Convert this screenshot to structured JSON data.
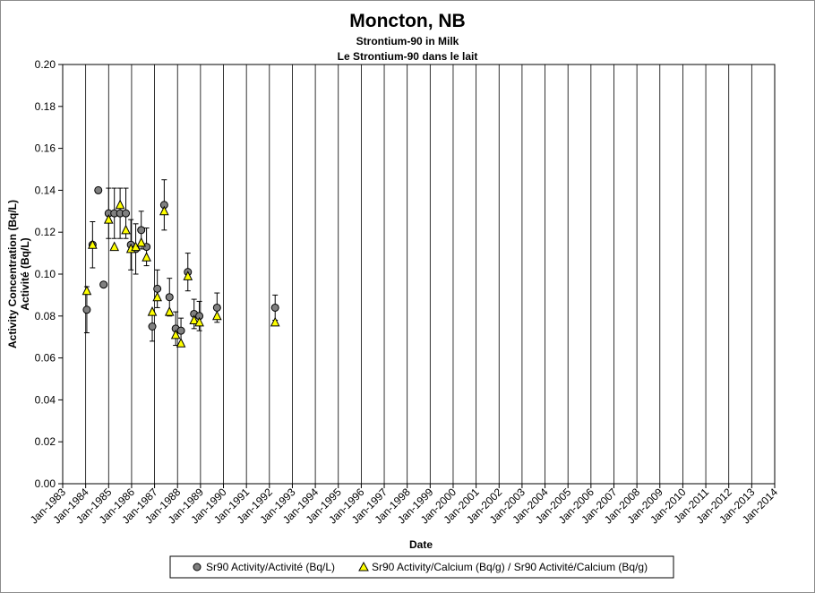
{
  "chart_data": {
    "type": "scatter",
    "title": "Moncton, NB",
    "subtitle_en": "Strontium-90 in Milk",
    "subtitle_fr": "Le Strontium-90 dans le lait",
    "xlabel": "Date",
    "ylabel_line1": "Activity Concentration (Bq/L)",
    "ylabel_line2": "Activité (Bq/L)",
    "xlim": [
      1983.0,
      2014.0
    ],
    "ylim": [
      0,
      0.2
    ],
    "x_tick_labels": [
      "Jan-1983",
      "Jan-1984",
      "Jan-1985",
      "Jan-1986",
      "Jan-1987",
      "Jan-1988",
      "Jan-1989",
      "Jan-1990",
      "Jan-1991",
      "Jan-1992",
      "Jan-1993",
      "Jan-1994",
      "Jan-1995",
      "Jan-1996",
      "Jan-1997",
      "Jan-1998",
      "Jan-1999",
      "Jan-2000",
      "Jan-2001",
      "Jan-2002",
      "Jan-2003",
      "Jan-2004",
      "Jan-2005",
      "Jan-2006",
      "Jan-2007",
      "Jan-2008",
      "Jan-2009",
      "Jan-2010",
      "Jan-2011",
      "Jan-2012",
      "Jan-2013",
      "Jan-2014"
    ],
    "y_tick_labels": [
      "0.00",
      "0.02",
      "0.04",
      "0.06",
      "0.08",
      "0.10",
      "0.12",
      "0.14",
      "0.16",
      "0.18",
      "0.20"
    ],
    "grid": "vertical",
    "legend_position": "bottom",
    "series": [
      {
        "name": "Sr90 Activity/Activité (Bq/L)",
        "marker": "circle",
        "color": "#808080",
        "points": [
          {
            "x": 1984.05,
            "y": 0.083,
            "err": 0.011
          },
          {
            "x": 1984.3,
            "y": 0.114,
            "err": 0.011
          },
          {
            "x": 1984.55,
            "y": 0.14
          },
          {
            "x": 1984.78,
            "y": 0.095
          },
          {
            "x": 1985.0,
            "y": 0.129,
            "err": 0.012
          },
          {
            "x": 1985.25,
            "y": 0.129,
            "err": 0.012
          },
          {
            "x": 1985.5,
            "y": 0.129,
            "err": 0.012
          },
          {
            "x": 1985.75,
            "y": 0.129,
            "err": 0.012
          },
          {
            "x": 1985.97,
            "y": 0.114,
            "err": 0.012
          },
          {
            "x": 1986.18,
            "y": 0.112,
            "err": 0.012
          },
          {
            "x": 1986.42,
            "y": 0.121,
            "err": 0.009
          },
          {
            "x": 1986.65,
            "y": 0.113,
            "err": 0.009
          },
          {
            "x": 1986.9,
            "y": 0.075,
            "err": 0.007
          },
          {
            "x": 1987.12,
            "y": 0.093,
            "err": 0.009
          },
          {
            "x": 1987.42,
            "y": 0.133,
            "err": 0.012
          },
          {
            "x": 1987.65,
            "y": 0.089,
            "err": 0.009
          },
          {
            "x": 1987.92,
            "y": 0.074,
            "err": 0.008
          },
          {
            "x": 1988.15,
            "y": 0.073,
            "err": 0.006
          },
          {
            "x": 1988.45,
            "y": 0.101,
            "err": 0.009
          },
          {
            "x": 1988.72,
            "y": 0.081,
            "err": 0.007
          },
          {
            "x": 1988.95,
            "y": 0.08,
            "err": 0.007
          },
          {
            "x": 1989.72,
            "y": 0.084,
            "err": 0.007
          },
          {
            "x": 1992.25,
            "y": 0.084,
            "err": 0.006
          }
        ]
      },
      {
        "name": "Sr90 Activity/Calcium (Bq/g) / Sr90 Activité/Calcium (Bq/g)",
        "marker": "triangle",
        "color": "#ffff00",
        "points": [
          {
            "x": 1984.05,
            "y": 0.092
          },
          {
            "x": 1984.3,
            "y": 0.114
          },
          {
            "x": 1985.0,
            "y": 0.126
          },
          {
            "x": 1985.25,
            "y": 0.113
          },
          {
            "x": 1985.5,
            "y": 0.133
          },
          {
            "x": 1985.75,
            "y": 0.121
          },
          {
            "x": 1985.97,
            "y": 0.112
          },
          {
            "x": 1986.18,
            "y": 0.113
          },
          {
            "x": 1986.42,
            "y": 0.115
          },
          {
            "x": 1986.65,
            "y": 0.108
          },
          {
            "x": 1986.9,
            "y": 0.082
          },
          {
            "x": 1987.12,
            "y": 0.089
          },
          {
            "x": 1987.42,
            "y": 0.13
          },
          {
            "x": 1987.65,
            "y": 0.082
          },
          {
            "x": 1987.92,
            "y": 0.071
          },
          {
            "x": 1988.15,
            "y": 0.067
          },
          {
            "x": 1988.45,
            "y": 0.099
          },
          {
            "x": 1988.72,
            "y": 0.078
          },
          {
            "x": 1988.95,
            "y": 0.077
          },
          {
            "x": 1989.72,
            "y": 0.08
          },
          {
            "x": 1992.25,
            "y": 0.077
          }
        ]
      }
    ]
  }
}
